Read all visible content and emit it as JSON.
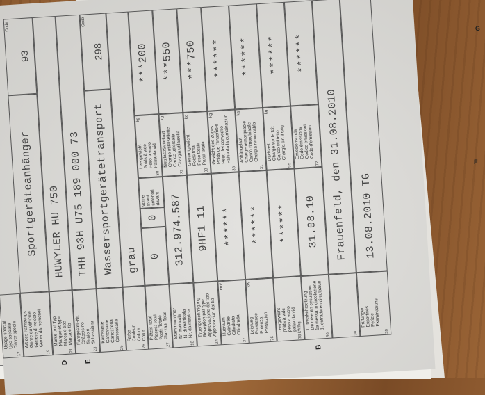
{
  "document": {
    "rows": [
      {
        "num": "17",
        "label": "Usage spécial\nUso speciale\nDiever special"
      },
      {
        "num": "19",
        "label": "Art des Fahrzeugs\nGenre du véhicule\nGenere di veicolo\nGener dal vehichel",
        "value": "Sportgeräteanhänger",
        "code_label": "Code",
        "code": "93"
      },
      {
        "num": "21",
        "letter": "D",
        "label": "Marke und Typ\nMarque et type\nMarca e tipo\nMarca e tip",
        "value": "HUWYLER HU 750"
      },
      {
        "num": "23",
        "letter": "E",
        "label": "Fahrgestell-Nr.\nChâssis no\nTelaio n.\nSchassis nr",
        "value": "THH 93H U75 189 000 73"
      },
      {
        "num": "25",
        "label": "Karosserie\nCarrosserie\nCarrozzeria\nCarrossaria",
        "value": "Wassersportgerätetransport",
        "code_label": "Code",
        "code": "298"
      },
      {
        "num": "26",
        "label": "Farbe\nCouleur\nColore\nColur",
        "value": "grau"
      },
      {
        "num": "27",
        "label": "Plätze:   Total\nPlaces:   Total\nPosti:   Totale\nPlazzas:   Total",
        "value": "0",
        "value2": "0",
        "front_label": "vorne\navant\nanteriori\ndavant",
        "sub_num": "30",
        "sub_label": "Leergewicht\nPoids à vide\nPeso a vuoto\nPaisa da vid",
        "sub_unit": "kg",
        "sub_value": "***200"
      },
      {
        "num": "18",
        "label": "Stammnummer\nN° matricule\nN. di matricola\nNr. da matricla",
        "value": "312.974.587",
        "sub_num": "32",
        "sub_label": "Nutzlast/Sattellast\nCharge utile/sellette\nCarico utile/sella\nChargia utila/sella",
        "sub_unit": "kg",
        "sub_value": "***550"
      },
      {
        "num": "24",
        "label": "Typengenehmigung\nRéception par type\nApprovazione del tipo\nApprovaziun dal tip",
        "value": "9HF1 11",
        "sub_num": "33",
        "sub_label": "Gesamtgewicht\nPoids total\nPeso totale\nPaisa totala",
        "sub_unit": "kg",
        "sub_value": "***750"
      },
      {
        "num": "37",
        "label": "Hubraum\nCylindrée\nCilindrata\nCilindrada",
        "unit": "cm³",
        "value": "******",
        "sub_num": "35",
        "sub_label": "Gewicht des Zuges\nPoids de l'ensemble\nPeso del convoglio\nPaisa da la cumbinaziun",
        "sub_unit": "kg",
        "sub_value": "******"
      },
      {
        "num": "76",
        "label": "Leistung\nPuissance\nPotenza\nPrestaziun",
        "unit": "kW",
        "value": "******",
        "sub_num": "31",
        "sub_label": "Anhängelast\nCharge remorquable\nCarico rimorchiabile\nChargia remorcabla",
        "sub_unit": "kg",
        "sub_value": "******"
      },
      {
        "num": "78 kW/kg",
        "label": "Leergewicht\npoids à vide\npeso a vuoto\npaisa da vid",
        "value": "******",
        "sub_num": "55",
        "sub_label": "Dachlast\nCharge sur le toit\nCarico sul tetto\nChargia sin il tetg",
        "sub_unit": "kg",
        "sub_value": "******"
      },
      {
        "num": "36",
        "letter": "B",
        "label": "1. Inverkehrsetzung\n1re mise en circulation\n1a messa in circolazione\n1. entrada en circulaziun",
        "value": "31.08.10",
        "sub_num": "72",
        "sub_label": "Emissionscode\nCode émissions\nCodice emissioni\nCode d'emissiun",
        "sub_value": "******"
      },
      {
        "num": "38",
        "label": "",
        "value": "Frauenfeld, den 31.08.2010"
      },
      {
        "num": "39",
        "label": "Prüfungen\nExpertises\nPerizie\nExaminaziuns",
        "value": "13.08.2010 TG"
      }
    ]
  },
  "edge_letters": {
    "g": "G",
    "f": "F"
  },
  "colors": {
    "paper": "#d9d8d4",
    "wood": "#8b5a30",
    "ink": "#444444"
  }
}
